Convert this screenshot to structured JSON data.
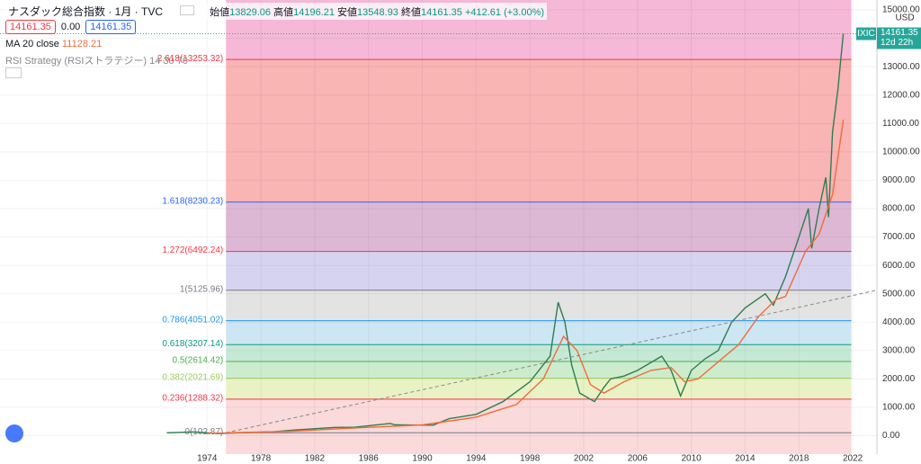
{
  "header": {
    "symbol": "ナスダック総合指数 · 1月 · TVC",
    "open_label": "始値",
    "open": "13829.06",
    "high_label": "高値",
    "high": "14196.21",
    "low_label": "安値",
    "low": "13548.93",
    "close_label": "終値",
    "close": "14161.35",
    "change": "+412.61 (+3.00%)",
    "box_sell": "14161.35",
    "box_spread": "0.00",
    "box_buy": "14161.35",
    "ma_label": "MA 20 close",
    "ma_value": "11128.21",
    "rsi_label": "RSI Strategy (RSIストラテジー) 14 30 70"
  },
  "chart_data": {
    "type": "line",
    "currency": "USD",
    "price_tag": {
      "symbol": "IXIC",
      "price": "14161.35",
      "countdown": "12d 22h",
      "value": 14161.35
    },
    "xlim": [
      1958.6,
      2023.8
    ],
    "xticks": [
      1974,
      1978,
      1982,
      1986,
      1990,
      1994,
      1998,
      2002,
      2006,
      2010,
      2014,
      2018,
      2022
    ],
    "ylim": [
      -650,
      15350
    ],
    "yticks": [
      {
        "value": 0,
        "label": "0.00"
      },
      {
        "value": 1000,
        "label": "1000.00"
      },
      {
        "value": 2000,
        "label": "2000.00"
      },
      {
        "value": 3000,
        "label": "3000.00"
      },
      {
        "value": 4000,
        "label": "4000.00"
      },
      {
        "value": 5000,
        "label": "5000.00"
      },
      {
        "value": 6000,
        "label": "6000.00"
      },
      {
        "value": 7000,
        "label": "7000.00"
      },
      {
        "value": 8000,
        "label": "8000.00"
      },
      {
        "value": 9000,
        "label": "9000.00"
      },
      {
        "value": 10000,
        "label": "10000.00"
      },
      {
        "value": 11000,
        "label": "11000.00"
      },
      {
        "value": 12000,
        "label": "12000.00"
      },
      {
        "value": 13000,
        "label": "13000.00"
      },
      {
        "value": 14000,
        "label": "14000.00"
      },
      {
        "value": 15000,
        "label": "15000.00"
      }
    ],
    "fib_x": [
      1975.4,
      2021.9
    ],
    "top_fill": "#f5b8d6",
    "fib_levels": [
      {
        "value": 102.87,
        "label": "0(102.87)",
        "color": "#787b86",
        "fill": "#ffffff"
      },
      {
        "value": 1288.32,
        "label": "0.236(1288.32)",
        "color": "#f23645",
        "fill": "#fadada"
      },
      {
        "value": 2021.69,
        "label": "0.382(2021.69)",
        "color": "#9ccc65",
        "fill": "#e8f2c5"
      },
      {
        "value": 2614.42,
        "label": "0.5(2614.42)",
        "color": "#4caf50",
        "fill": "#cdeccd"
      },
      {
        "value": 3207.14,
        "label": "0.618(3207.14)",
        "color": "#089981",
        "fill": "#c6e9d6"
      },
      {
        "value": 4051.02,
        "label": "0.786(4051.02)",
        "color": "#2196f3",
        "fill": "#cde6f3"
      },
      {
        "value": 5125.96,
        "label": "1(5125.96)",
        "color": "#787b86",
        "fill": "#e3e3e3"
      },
      {
        "value": 6492.24,
        "label": "1.272(6492.24)",
        "color": "#f23645",
        "fill": "#d6d3f0"
      },
      {
        "value": 8230.23,
        "label": "1.618(8230.23)",
        "color": "#2962ff",
        "fill": "#dcb8d4"
      },
      {
        "value": 13253.32,
        "label": "2.618(13253.32)",
        "color": "#f23645",
        "fill": "#f9b4b4"
      }
    ],
    "series": [
      {
        "color": "#2e7d4f",
        "dash": false,
        "x": [
          1971,
          1973,
          1974.8,
          1977,
          1979,
          1980.5,
          1983.5,
          1985,
          1987.6,
          1988,
          1990.8,
          1992,
          1994,
          1996,
          1998,
          1999,
          1999.5,
          2000.1,
          2000.6,
          2001.1,
          2001.7,
          2002.8,
          2003.5,
          2004,
          2005,
          2006,
          2007.8,
          2008.5,
          2009.2,
          2010,
          2011,
          2012,
          2013,
          2014,
          2015.5,
          2016.1,
          2017,
          2018,
          2018.7,
          2018.95,
          2019.5,
          2020,
          2020.2,
          2020.5,
          2020.9,
          2021.1,
          2021.3
        ],
        "values": [
          100,
          130,
          75,
          110,
          140,
          200,
          290,
          300,
          430,
          380,
          370,
          600,
          750,
          1200,
          1900,
          2500,
          2800,
          4700,
          4000,
          2500,
          1500,
          1200,
          1700,
          2000,
          2100,
          2300,
          2800,
          2300,
          1400,
          2300,
          2700,
          3000,
          4000,
          4500,
          5000,
          4600,
          5600,
          7000,
          8000,
          6600,
          8000,
          9100,
          7700,
          10700,
          12200,
          13200,
          14161.35
        ]
      },
      {
        "color": "#f26b3a",
        "dash": false,
        "x": [
          1974,
          1980,
          1985,
          1990,
          1994,
          1997,
          1999,
          2000.5,
          2001.5,
          2002.5,
          2003.5,
          2005,
          2007,
          2008.5,
          2009.5,
          2010.5,
          2012,
          2013.5,
          2015,
          2016.3,
          2017,
          2018.5,
          2019.5,
          2020.5,
          2021.3
        ],
        "values": [
          80,
          150,
          270,
          380,
          650,
          1100,
          2000,
          3500,
          3000,
          1800,
          1500,
          1900,
          2300,
          2400,
          1900,
          2000,
          2600,
          3200,
          4200,
          4800,
          4900,
          6500,
          7100,
          8500,
          11128.21
        ]
      },
      {
        "color": "#888888",
        "dash": true,
        "x": [
          1975.4,
          2023.8
        ],
        "values": [
          102.87,
          5125.96
        ]
      }
    ]
  }
}
